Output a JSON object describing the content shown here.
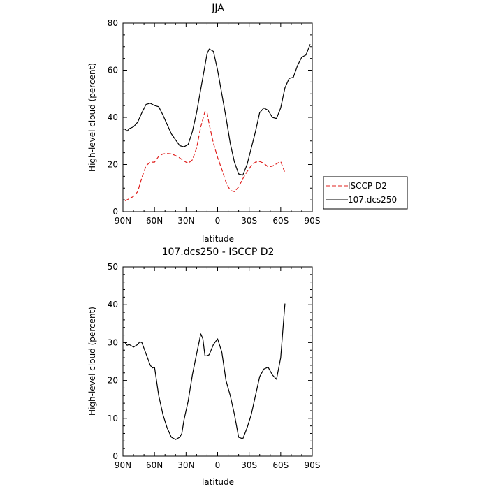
{
  "chart_data": [
    {
      "type": "line",
      "title": "JJA",
      "xlabel": "latitude",
      "ylabel": "High-level cloud (percent)",
      "xlim": [
        90,
        -90
      ],
      "ylim": [
        0,
        80
      ],
      "x_tick_values": [
        90,
        60,
        30,
        0,
        -30,
        -60,
        -90
      ],
      "x_tick_labels": [
        "90N",
        "60N",
        "30N",
        "0",
        "30S",
        "60S",
        "90S"
      ],
      "y_tick_values": [
        0,
        20,
        40,
        60,
        80
      ],
      "y_tick_labels": [
        "0",
        "20",
        "40",
        "60",
        "80"
      ],
      "legend": {
        "position": "right"
      },
      "series": [
        {
          "name": "ISCCP D2",
          "color": "#e0201e",
          "dash": "dashed",
          "x": [
            88,
            84,
            80,
            76,
            72,
            68,
            64,
            60,
            56,
            52,
            48,
            44,
            40,
            36,
            32,
            28,
            24,
            20,
            16,
            12,
            10,
            8,
            4,
            0,
            -4,
            -8,
            -12,
            -16,
            -20,
            -24,
            -28,
            -32,
            -36,
            -40,
            -44,
            -48,
            -52,
            -56,
            -60,
            -64
          ],
          "y": [
            4.6,
            5.5,
            6.5,
            8.5,
            14.5,
            19.5,
            21,
            21,
            23.5,
            24.5,
            24.7,
            24.5,
            23.8,
            22.8,
            21.5,
            20.5,
            22,
            27,
            36,
            42.5,
            42,
            37,
            29,
            23,
            18,
            12.5,
            9,
            8.5,
            10.5,
            14,
            17,
            19.5,
            21,
            21.3,
            20.5,
            19,
            19.3,
            20.3,
            21.3,
            16.5
          ]
        },
        {
          "name": "107.dcs250",
          "color": "#000000",
          "dash": "solid",
          "x": [
            88,
            86,
            84,
            80,
            76,
            72,
            68,
            64,
            60,
            56,
            52,
            48,
            44,
            40,
            36,
            32,
            28,
            24,
            20,
            16,
            12,
            10,
            8,
            4,
            0,
            -4,
            -8,
            -12,
            -16,
            -20,
            -24,
            -28,
            -32,
            -36,
            -40,
            -44,
            -48,
            -52,
            -56,
            -60,
            -64,
            -68,
            -72,
            -76,
            -80,
            -84,
            -88
          ],
          "y": [
            35,
            34.2,
            35.2,
            36,
            38,
            42,
            45.5,
            46,
            45,
            44.5,
            41,
            37,
            33,
            30.5,
            28,
            27.5,
            28.5,
            34,
            42,
            52,
            62,
            67,
            69,
            68,
            60,
            50,
            40,
            29,
            21,
            16,
            15.5,
            20,
            27,
            34,
            42,
            44,
            43,
            40,
            39.5,
            44,
            52.5,
            56.5,
            57,
            62,
            65.5,
            66.5,
            71
          ]
        }
      ]
    },
    {
      "type": "line",
      "title": "107.dcs250 - ISCCP D2",
      "xlabel": "latitude",
      "ylabel": "High-level cloud (percent)",
      "xlim": [
        90,
        -90
      ],
      "ylim": [
        0,
        50
      ],
      "x_tick_values": [
        90,
        60,
        30,
        0,
        -30,
        -60,
        -90
      ],
      "x_tick_labels": [
        "90N",
        "60N",
        "30N",
        "0",
        "30S",
        "60S",
        "90S"
      ],
      "y_tick_values": [
        0,
        10,
        20,
        30,
        40,
        50
      ],
      "y_tick_labels": [
        "0",
        "10",
        "20",
        "30",
        "40",
        "50"
      ],
      "series": [
        {
          "color": "#000000",
          "dash": "solid",
          "x": [
            88,
            86,
            84,
            80,
            76,
            74,
            72,
            68,
            64,
            62,
            60,
            56,
            52,
            48,
            44,
            40,
            36,
            34,
            32,
            28,
            24,
            20,
            16,
            14,
            12,
            10,
            8,
            4,
            0,
            -4,
            -8,
            -12,
            -16,
            -20,
            -24,
            -28,
            -32,
            -36,
            -40,
            -44,
            -48,
            -52,
            -56,
            -60,
            -64
          ],
          "y": [
            30,
            29.3,
            29.5,
            28.8,
            29.5,
            30.2,
            30,
            27,
            24,
            23.3,
            23.5,
            16,
            11,
            7.5,
            5,
            4.4,
            5,
            6,
            9.5,
            14.5,
            21.5,
            27,
            32.3,
            31,
            26.5,
            26.5,
            26.8,
            29.5,
            31,
            27.5,
            20,
            16,
            11,
            5,
            4.6,
            7.5,
            11,
            16,
            21,
            23,
            23.5,
            21.5,
            20.3,
            26,
            40.3
          ]
        }
      ]
    }
  ]
}
